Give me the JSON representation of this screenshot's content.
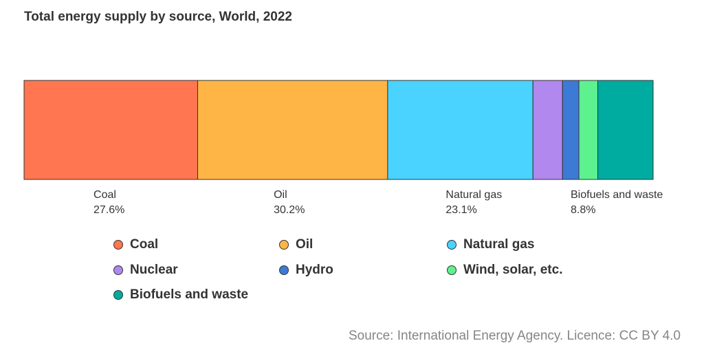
{
  "chart_data": {
    "type": "bar",
    "subtype": "stacked-horizontal-percentage",
    "title": "Total energy supply by source, World, 2022",
    "xlabel": "",
    "ylabel": "",
    "grid": false,
    "legend": "bottom",
    "source": "Source: International Energy Agency. Licence: CC BY 4.0",
    "categories": [
      "World, 2022"
    ],
    "series": [
      {
        "name": "Coal",
        "value": 27.6,
        "label": "27.6%",
        "color": "#ff7650",
        "show_label": true
      },
      {
        "name": "Oil",
        "value": 30.2,
        "label": "30.2%",
        "color": "#ffb545",
        "show_label": true
      },
      {
        "name": "Natural gas",
        "value": 23.1,
        "label": "23.1%",
        "color": "#4ad3ff",
        "show_label": true
      },
      {
        "name": "Nuclear",
        "value": 4.7,
        "label": "",
        "color": "#b088ee",
        "show_label": false
      },
      {
        "name": "Hydro",
        "value": 2.6,
        "label": "",
        "color": "#3d7ad6",
        "show_label": false
      },
      {
        "name": "Wind, solar, etc.",
        "value": 3.0,
        "label": "",
        "color": "#5ef190",
        "show_label": false
      },
      {
        "name": "Biofuels and waste",
        "value": 8.8,
        "label": "8.8%",
        "color": "#00aba0",
        "show_label": true
      }
    ]
  }
}
